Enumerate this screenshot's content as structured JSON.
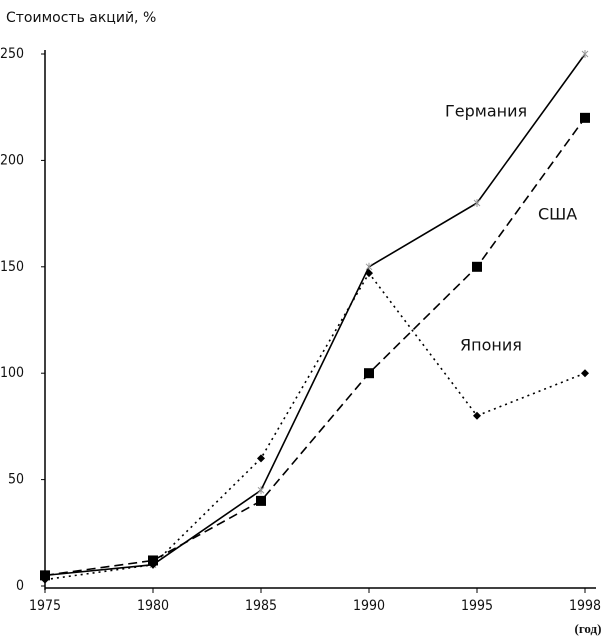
{
  "chart_data": {
    "type": "line",
    "title": "Стоимость акций, %",
    "x_unit": "(год)",
    "categories": [
      "1975",
      "1980",
      "1985",
      "1990",
      "1995",
      "1998"
    ],
    "series": [
      {
        "name": "Германия",
        "color": "#000000",
        "dash": "solid",
        "marker": "star",
        "values": [
          5,
          10,
          45,
          150,
          180,
          250
        ]
      },
      {
        "name": "США",
        "color": "#000000",
        "dash": "dashed",
        "marker": "square",
        "values": [
          5,
          12,
          40,
          100,
          150,
          220
        ]
      },
      {
        "name": "Япония",
        "color": "#000000",
        "dash": "dotted",
        "marker": "diamond",
        "values": [
          3,
          10,
          60,
          147,
          80,
          100
        ]
      }
    ],
    "ylim": [
      0,
      250
    ],
    "yticks": [
      0,
      50,
      100,
      150,
      200,
      250
    ],
    "grid": false
  }
}
